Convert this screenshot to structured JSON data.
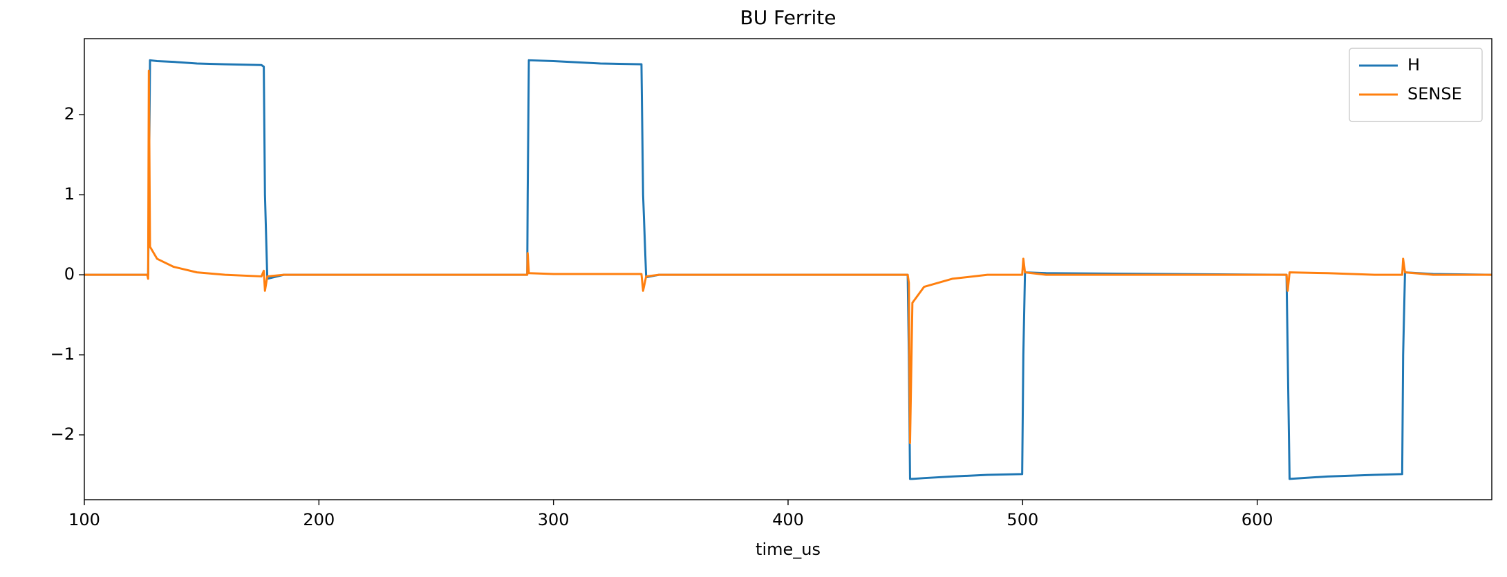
{
  "chart_data": {
    "type": "line",
    "title": "BU Ferrite",
    "xlabel": "time_us",
    "x": [
      100,
      126.8,
      127.2,
      127.5,
      128,
      131,
      138,
      148,
      160,
      175.5,
      176.5,
      177,
      178,
      185,
      288.8,
      289,
      289.5,
      300,
      320,
      337.5,
      338.2,
      339.5,
      345,
      451,
      451.5,
      452,
      453,
      458,
      470,
      485,
      499.8,
      500.3,
      501,
      510,
      612.5,
      613,
      613.8,
      630,
      650,
      661.8,
      662.2,
      663,
      675,
      700
    ],
    "series": [
      {
        "name": "H",
        "color": "#1f77b4",
        "values": [
          0,
          0,
          0,
          1.0,
          2.68,
          2.67,
          2.66,
          2.64,
          2.63,
          2.62,
          2.6,
          1.0,
          -0.05,
          0,
          0,
          1.0,
          2.68,
          2.67,
          2.64,
          2.63,
          1.0,
          -0.03,
          0,
          0,
          -1.0,
          -2.55,
          -2.55,
          -2.54,
          -2.52,
          -2.5,
          -2.49,
          -1.0,
          0.03,
          0.02,
          0,
          -1.0,
          -2.55,
          -2.52,
          -2.5,
          -2.49,
          -1.0,
          0.03,
          0.01,
          0
        ]
      },
      {
        "name": "SENSE",
        "color": "#ff7f0e",
        "values": [
          0,
          0,
          -0.05,
          2.55,
          0.35,
          0.2,
          0.1,
          0.03,
          0,
          -0.02,
          0.05,
          -0.2,
          -0.02,
          0,
          0,
          0.27,
          0.02,
          0.01,
          0.01,
          0.01,
          -0.2,
          -0.02,
          0,
          0,
          -0.1,
          -2.1,
          -0.35,
          -0.15,
          -0.05,
          0,
          0,
          0.2,
          0.03,
          0,
          0,
          -0.2,
          0.03,
          0.02,
          0,
          0,
          0.2,
          0.03,
          0,
          0
        ]
      }
    ],
    "xlim": [
      100,
      700
    ],
    "xticks": [
      100,
      200,
      300,
      400,
      500,
      600
    ],
    "ylim": [
      -2.81,
      2.95
    ],
    "yticks": [
      {
        "value": -2,
        "label": "−2"
      },
      {
        "value": -1,
        "label": "−1"
      },
      0,
      1,
      2
    ],
    "grid": false,
    "legend": "upper right"
  }
}
